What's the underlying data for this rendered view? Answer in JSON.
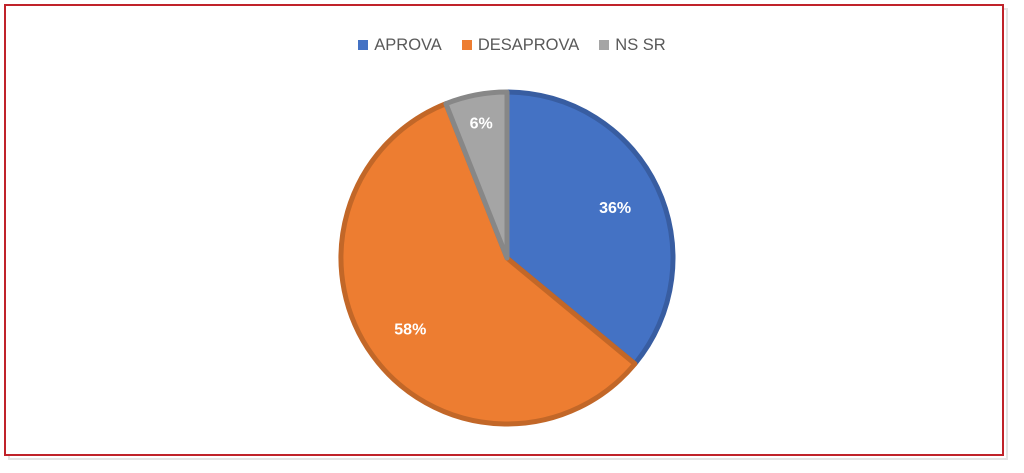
{
  "chart_data": {
    "type": "pie",
    "categories": [
      "APROVA",
      "DESAPROVA",
      "NS SR"
    ],
    "values": [
      36,
      58,
      6
    ],
    "data_labels": [
      "36%",
      "58%",
      "6%"
    ],
    "colors": [
      "#4472c4",
      "#ed7d31",
      "#a5a5a5"
    ],
    "legend_position": "top",
    "start_angle_deg": 0,
    "direction": "clockwise"
  }
}
